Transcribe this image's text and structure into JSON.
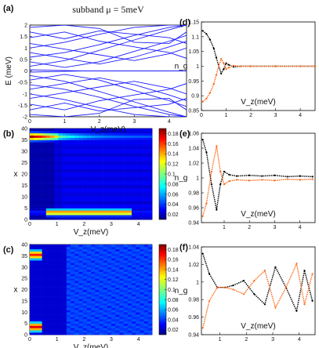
{
  "colors": {
    "band_line": "#1a1aff",
    "series_black": "#000000",
    "series_orange": "#ff6a1a",
    "axis": "#000000"
  },
  "chart_data": [
    {
      "id": "a",
      "panel_label": "(a)",
      "type": "line",
      "title": "subband μ = 5meV",
      "xlabel": "V_z(meV)",
      "ylabel": "E (meV)",
      "xlim": [
        0,
        4.5
      ],
      "ylim": [
        -2,
        2
      ],
      "x_ticks": [
        "0",
        "1",
        "2",
        "3",
        "4"
      ],
      "y_ticks": [
        "2",
        "1.5",
        "1",
        "0.5",
        "0",
        "-0.5",
        "-1",
        "-1.5",
        "-2"
      ],
      "grid": false,
      "series_note": "many blue subband energy curves E(Vz)",
      "series": [
        {
          "x": [
            0,
            1,
            2,
            3,
            4,
            4.5
          ],
          "y": [
            0.2,
            0.45,
            0.9,
            1.35,
            1.8,
            2.0
          ]
        },
        {
          "x": [
            0,
            1,
            2,
            3,
            4,
            4.5
          ],
          "y": [
            -0.2,
            -0.45,
            -0.9,
            -1.35,
            -1.8,
            -2.0
          ]
        },
        {
          "x": [
            0,
            1,
            2,
            3,
            4,
            4.5
          ],
          "y": [
            0.4,
            0.15,
            0.4,
            0.85,
            1.3,
            1.55
          ]
        },
        {
          "x": [
            0,
            1,
            2,
            3,
            4,
            4.5
          ],
          "y": [
            -0.4,
            -0.15,
            -0.4,
            -0.85,
            -1.3,
            -1.55
          ]
        },
        {
          "x": [
            0,
            1,
            2,
            3,
            4,
            4.5
          ],
          "y": [
            0.6,
            0.8,
            1.15,
            1.55,
            1.9,
            2.0
          ]
        },
        {
          "x": [
            0,
            1,
            2,
            3,
            4,
            4.5
          ],
          "y": [
            -0.6,
            -0.8,
            -1.15,
            -1.55,
            -1.9,
            -2.0
          ]
        },
        {
          "x": [
            0,
            1,
            2,
            3,
            4,
            4.5
          ],
          "y": [
            0.8,
            0.55,
            0.3,
            0.6,
            1.05,
            1.3
          ]
        },
        {
          "x": [
            0,
            1,
            2,
            3,
            4,
            4.5
          ],
          "y": [
            -0.8,
            -0.55,
            -0.3,
            -0.6,
            -1.05,
            -1.3
          ]
        },
        {
          "x": [
            0,
            1,
            2,
            3,
            4,
            4.5
          ],
          "y": [
            1.0,
            1.25,
            1.6,
            1.9,
            2.0,
            2.0
          ]
        },
        {
          "x": [
            0,
            1,
            2,
            3,
            4,
            4.5
          ],
          "y": [
            -1.0,
            -1.25,
            -1.6,
            -1.9,
            -2.0,
            -2.0
          ]
        },
        {
          "x": [
            0,
            1,
            2,
            3,
            4,
            4.5
          ],
          "y": [
            1.2,
            0.95,
            0.7,
            0.45,
            0.75,
            1.0
          ]
        },
        {
          "x": [
            0,
            1,
            2,
            3,
            4,
            4.5
          ],
          "y": [
            -1.2,
            -0.95,
            -0.7,
            -0.45,
            -0.75,
            -1.0
          ]
        },
        {
          "x": [
            0,
            1,
            2,
            3,
            4,
            4.5
          ],
          "y": [
            1.45,
            1.7,
            1.3,
            1.05,
            0.8,
            0.55
          ]
        },
        {
          "x": [
            0,
            1,
            2,
            3,
            4,
            4.5
          ],
          "y": [
            -1.45,
            -1.7,
            -1.3,
            -1.05,
            -0.8,
            -0.55
          ]
        },
        {
          "x": [
            0,
            1,
            2,
            3,
            4,
            4.5
          ],
          "y": [
            1.7,
            1.4,
            1.75,
            1.6,
            1.45,
            1.2
          ]
        },
        {
          "x": [
            0,
            1,
            2,
            3,
            4,
            4.5
          ],
          "y": [
            -1.7,
            -1.4,
            -1.75,
            -1.6,
            -1.45,
            -1.2
          ]
        },
        {
          "x": [
            0,
            1,
            2,
            3,
            4,
            4.5
          ],
          "y": [
            1.9,
            2.0,
            1.85,
            1.25,
            1.2,
            1.7
          ]
        },
        {
          "x": [
            0,
            1,
            2,
            3,
            4,
            4.5
          ],
          "y": [
            -1.9,
            -2.0,
            -1.85,
            -1.25,
            -1.2,
            -1.7
          ]
        },
        {
          "x": [
            0,
            0.9,
            1.5,
            2.2,
            3,
            3.7,
            4.5
          ],
          "y": [
            0.05,
            0.02,
            0.0,
            0.0,
            0.0,
            0.0,
            0.0
          ]
        },
        {
          "x": [
            0,
            0.9,
            1.5,
            2.2,
            3,
            3.7,
            4.5
          ],
          "y": [
            -0.05,
            -0.02,
            0.0,
            0.0,
            0.0,
            0.0,
            0.0
          ]
        }
      ]
    },
    {
      "id": "b",
      "panel_label": "(b)",
      "type": "heatmap",
      "xlabel": "V_z(meV)",
      "ylabel": "x",
      "xlim": [
        0,
        4.5
      ],
      "ylim": [
        0,
        40
      ],
      "x_ticks": [
        "0",
        "1",
        "2",
        "3",
        "4"
      ],
      "y_ticks": [
        "40",
        "35",
        "30",
        "25",
        "20",
        "15",
        "10",
        "5",
        "0"
      ],
      "colorbar_ticks": [
        "0.18",
        "0.16",
        "0.14",
        "0.12",
        "0.1",
        "0.08",
        "0.06",
        "0.04",
        "0.02"
      ],
      "zlim": [
        0.01,
        0.19
      ]
    },
    {
      "id": "c",
      "panel_label": "(c)",
      "type": "heatmap",
      "xlabel": "V_z(meV)",
      "ylabel": "x",
      "xlim": [
        0,
        4.5
      ],
      "ylim": [
        0,
        40
      ],
      "x_ticks": [
        "0",
        "1",
        "2",
        "3",
        "4"
      ],
      "y_ticks": [
        "40",
        "35",
        "30",
        "25",
        "20",
        "15",
        "10",
        "5",
        "0"
      ],
      "colorbar_ticks": [
        "0.18",
        "0.16",
        "0.14",
        "0.12",
        "0.1",
        "0.08",
        "0.06",
        "0.04",
        "0.02"
      ],
      "zlim": [
        0.01,
        0.19
      ]
    },
    {
      "id": "d",
      "panel_label": "(d)",
      "type": "line",
      "xlabel": "V_z(meV)",
      "ylabel": "n_g",
      "xlim": [
        0,
        4.6
      ],
      "ylim": [
        0.85,
        1.15
      ],
      "x_ticks": [
        "0",
        "1",
        "2",
        "3",
        "4"
      ],
      "y_ticks": [
        "1.15",
        "1.1",
        "1.05",
        "1",
        "0.95",
        "0.9",
        "0.85"
      ],
      "series": [
        {
          "color": "black",
          "x": [
            0.05,
            0.2,
            0.35,
            0.5,
            0.6,
            0.7,
            0.8,
            0.9,
            1.0,
            1.1,
            1.3,
            1.6,
            2.0,
            3.0,
            4.0,
            4.6
          ],
          "y": [
            1.12,
            1.11,
            1.09,
            1.06,
            1.03,
            1.0,
            0.975,
            0.99,
            1.01,
            1.005,
            0.998,
            1.0,
            1.0,
            1.0,
            1.0,
            1.0
          ]
        },
        {
          "color": "orange",
          "x": [
            0.05,
            0.2,
            0.35,
            0.5,
            0.6,
            0.7,
            0.8,
            0.9,
            1.0,
            1.1,
            1.3,
            1.6,
            2.0,
            3.0,
            4.0,
            4.6
          ],
          "y": [
            0.88,
            0.89,
            0.91,
            0.94,
            0.97,
            1.0,
            1.025,
            1.01,
            0.99,
            0.995,
            1.002,
            1.0,
            1.0,
            1.0,
            1.0,
            1.0
          ]
        }
      ]
    },
    {
      "id": "e",
      "panel_label": "(e)",
      "type": "line",
      "xlabel": "V_z(meV)",
      "ylabel": "n_g",
      "xlim": [
        0.1,
        4.6
      ],
      "ylim": [
        0.93,
        1.07
      ],
      "x_ticks": [
        "1",
        "2",
        "3",
        "4"
      ],
      "y_ticks": [
        "1.06",
        "1.04",
        "1.02",
        "1",
        "0.98",
        "0.96",
        "0.94"
      ],
      "series": [
        {
          "color": "black",
          "x": [
            0.15,
            0.3,
            0.5,
            0.7,
            0.85,
            1.0,
            1.2,
            1.5,
            2.0,
            2.5,
            3.0,
            3.5,
            4.0,
            4.5
          ],
          "y": [
            1.06,
            1.04,
            0.99,
            0.95,
            0.99,
            1.01,
            1.005,
            1.003,
            1.004,
            1.003,
            1.004,
            1.002,
            1.003,
            1.002
          ]
        },
        {
          "color": "orange",
          "x": [
            0.15,
            0.3,
            0.5,
            0.7,
            0.85,
            1.0,
            1.2,
            1.5,
            2.0,
            2.5,
            3.0,
            3.5,
            4.0,
            4.5
          ],
          "y": [
            0.94,
            0.96,
            1.01,
            1.05,
            1.01,
            0.99,
            0.995,
            0.997,
            0.996,
            0.997,
            0.996,
            0.998,
            0.997,
            0.998
          ]
        }
      ]
    },
    {
      "id": "f",
      "panel_label": "(f)",
      "type": "line",
      "xlabel": "V_z(meV)",
      "ylabel": "n_g",
      "xlim": [
        0.3,
        4.6
      ],
      "ylim": [
        0.93,
        1.06
      ],
      "x_ticks": [
        "1",
        "2",
        "3",
        "4"
      ],
      "y_ticks": [
        "1.04",
        "1.02",
        "1",
        "0.98",
        "0.96",
        "0.94"
      ],
      "series": [
        {
          "color": "black",
          "x": [
            0.35,
            0.6,
            0.9,
            1.2,
            1.5,
            1.9,
            2.3,
            2.7,
            3.1,
            3.5,
            3.9,
            4.2,
            4.5
          ],
          "y": [
            1.05,
            1.02,
            1.0,
            1.0,
            1.003,
            1.01,
            0.99,
            0.975,
            1.03,
            1.0,
            0.965,
            1.025,
            0.98
          ]
        },
        {
          "color": "orange",
          "x": [
            0.35,
            0.6,
            0.9,
            1.2,
            1.5,
            1.9,
            2.3,
            2.7,
            3.1,
            3.5,
            3.9,
            4.2,
            4.5
          ],
          "y": [
            0.94,
            0.98,
            1.0,
            1.0,
            0.997,
            0.99,
            1.01,
            1.025,
            0.97,
            1.0,
            1.035,
            0.975,
            1.02
          ]
        }
      ]
    }
  ]
}
